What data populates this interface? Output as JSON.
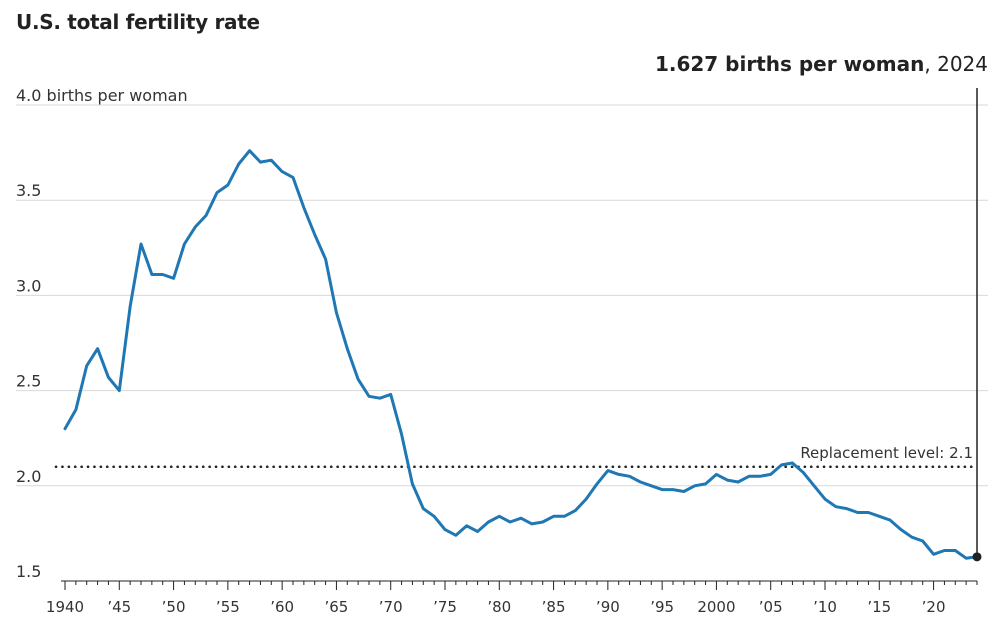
{
  "chart_data": {
    "type": "line",
    "title": "U.S. total fertility rate",
    "y_unit_label": "4.0 births per woman",
    "ylim": [
      1.5,
      4.0
    ],
    "xlim": [
      1940,
      2024
    ],
    "y_ticks": [
      {
        "value": 4.0,
        "label": "4.0 births per woman"
      },
      {
        "value": 3.5,
        "label": "3.5"
      },
      {
        "value": 3.0,
        "label": "3.0"
      },
      {
        "value": 2.5,
        "label": "2.5"
      },
      {
        "value": 2.0,
        "label": "2.0"
      },
      {
        "value": 1.5,
        "label": "1.5"
      }
    ],
    "x_ticks": [
      {
        "value": 1940,
        "label": "1940"
      },
      {
        "value": 1945,
        "label": "’45"
      },
      {
        "value": 1950,
        "label": "’50"
      },
      {
        "value": 1955,
        "label": "’55"
      },
      {
        "value": 1960,
        "label": "’60"
      },
      {
        "value": 1965,
        "label": "’65"
      },
      {
        "value": 1970,
        "label": "’70"
      },
      {
        "value": 1975,
        "label": "’75"
      },
      {
        "value": 1980,
        "label": "’80"
      },
      {
        "value": 1985,
        "label": "’85"
      },
      {
        "value": 1990,
        "label": "’90"
      },
      {
        "value": 1995,
        "label": "’95"
      },
      {
        "value": 2000,
        "label": "2000"
      },
      {
        "value": 2005,
        "label": "’05"
      },
      {
        "value": 2010,
        "label": "’10"
      },
      {
        "value": 2015,
        "label": "’15"
      },
      {
        "value": 2020,
        "label": "’20"
      }
    ],
    "series": [
      {
        "color": "#1f77b4",
        "x": [
          1940,
          1941,
          1942,
          1943,
          1944,
          1945,
          1946,
          1947,
          1948,
          1949,
          1950,
          1951,
          1952,
          1953,
          1954,
          1955,
          1956,
          1957,
          1958,
          1959,
          1960,
          1961,
          1962,
          1963,
          1964,
          1965,
          1966,
          1967,
          1968,
          1969,
          1970,
          1971,
          1972,
          1973,
          1974,
          1975,
          1976,
          1977,
          1978,
          1979,
          1980,
          1981,
          1982,
          1983,
          1984,
          1985,
          1986,
          1987,
          1988,
          1989,
          1990,
          1991,
          1992,
          1993,
          1994,
          1995,
          1996,
          1997,
          1998,
          1999,
          2000,
          2001,
          2002,
          2003,
          2004,
          2005,
          2006,
          2007,
          2008,
          2009,
          2010,
          2011,
          2012,
          2013,
          2014,
          2015,
          2016,
          2017,
          2018,
          2019,
          2020,
          2021,
          2022,
          2023,
          2024
        ],
        "y": [
          2.3,
          2.4,
          2.63,
          2.72,
          2.57,
          2.5,
          2.94,
          3.27,
          3.11,
          3.11,
          3.09,
          3.27,
          3.36,
          3.42,
          3.54,
          3.58,
          3.69,
          3.76,
          3.7,
          3.71,
          3.65,
          3.62,
          3.46,
          3.32,
          3.19,
          2.91,
          2.72,
          2.56,
          2.47,
          2.46,
          2.48,
          2.27,
          2.01,
          1.88,
          1.84,
          1.77,
          1.74,
          1.79,
          1.76,
          1.81,
          1.84,
          1.81,
          1.83,
          1.8,
          1.81,
          1.84,
          1.84,
          1.87,
          1.93,
          2.01,
          2.08,
          2.06,
          2.05,
          2.02,
          2.0,
          1.98,
          1.98,
          1.97,
          2.0,
          2.01,
          2.06,
          2.03,
          2.02,
          2.05,
          2.05,
          2.06,
          2.11,
          2.12,
          2.07,
          2.0,
          1.93,
          1.89,
          1.88,
          1.86,
          1.86,
          1.84,
          1.82,
          1.77,
          1.73,
          1.71,
          1.64,
          1.66,
          1.66,
          1.62,
          1.627
        ]
      }
    ],
    "reference_line": {
      "value": 2.1,
      "label": "Replacement level: 2.1",
      "style": "dotted",
      "color": "#222222"
    },
    "callout": {
      "year": 2024,
      "value_label": "1.627 births per woman",
      "year_label": "2024"
    },
    "grid": true,
    "gridline_color": "#d9d9d9",
    "axis_color": "#222222"
  }
}
